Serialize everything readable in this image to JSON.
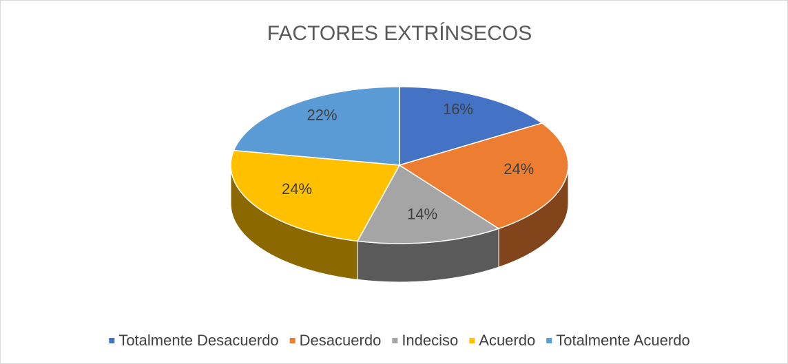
{
  "chart_data": {
    "type": "pie",
    "title": "FACTORES EXTRÍNSECOS",
    "categories": [
      "Totalmente Desacuerdo",
      "Desacuerdo",
      "Indeciso",
      "Acuerdo",
      "Totalmente Acuerdo"
    ],
    "values": [
      16,
      24,
      14,
      24,
      22
    ],
    "value_labels": [
      "16%",
      "24%",
      "14%",
      "24%",
      "22%"
    ],
    "colors": [
      "#4472c4",
      "#ed7d31",
      "#a5a5a5",
      "#ffc000",
      "#5b9bd5"
    ],
    "legend": "bottom"
  }
}
